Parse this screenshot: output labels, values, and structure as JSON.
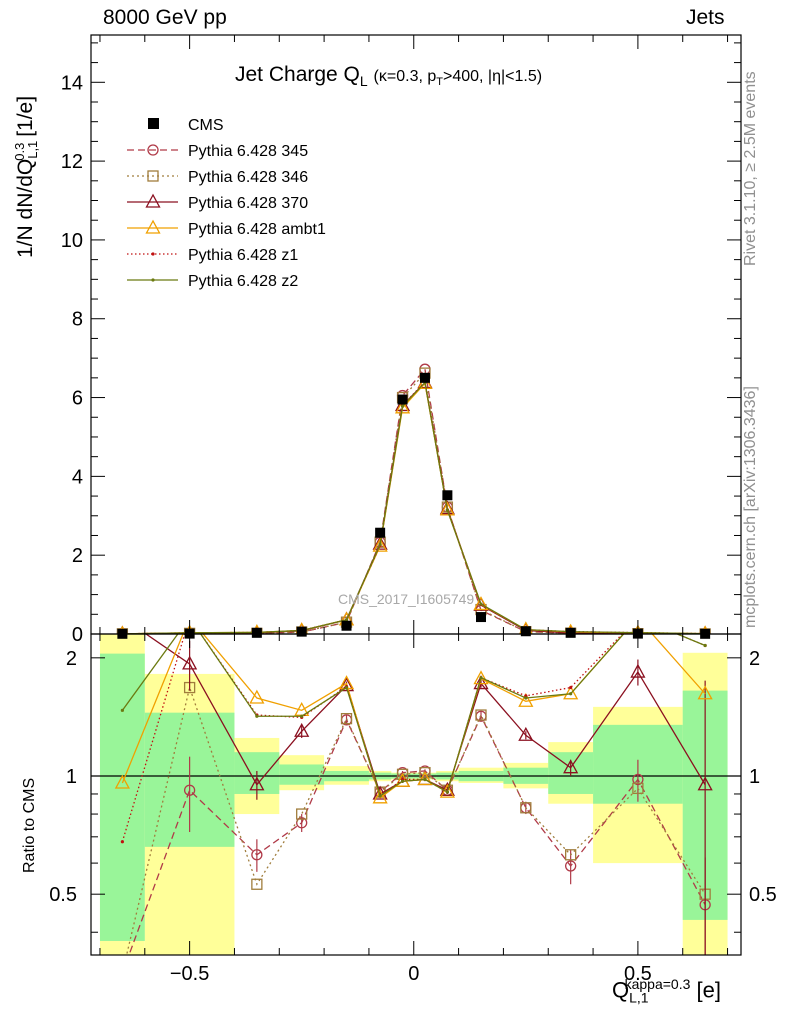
{
  "header": {
    "left": "8000 GeV pp",
    "right": "Jets"
  },
  "side": {
    "rivet": "Rivet 3.1.10, ≥ 2.5M events",
    "mcplots": "mcplots.cern.ch [arXiv:1306.3436]"
  },
  "watermark": "CMS_2017_I1605749",
  "chart_data": {
    "type": "line",
    "title": "Jet Charge Q_L (κ=0.3, p_T>400, |η|<1.5)",
    "title_main": "Jet Charge Q",
    "title_sub": "L",
    "title_detail": "(κ=0.3, p",
    "title_detail_sub": "T",
    "title_detail_end": ">400, |η|<1.5)",
    "xlabel": "Q_{L,1}^{kappa=0.3} [e]",
    "ylabel": "1/N dN/dQ_{L,1}^{0.3} [1/e]",
    "ratio_ylabel": "Ratio to CMS",
    "xlim": [
      -0.72,
      0.73
    ],
    "ylim": [
      0,
      15.2
    ],
    "ratio_ylim": [
      0.35,
      2.3
    ],
    "xticks": [
      -0.5,
      0,
      0.5
    ],
    "xticklabels": [
      "−0.5",
      "0",
      "0.5"
    ],
    "yticks": [
      0,
      2,
      4,
      6,
      8,
      10,
      12,
      14
    ],
    "ratio_yticks": [
      0.5,
      1,
      2
    ],
    "x": [
      -0.65,
      -0.5,
      -0.35,
      -0.25,
      -0.15,
      -0.075,
      -0.025,
      0.025,
      0.075,
      0.15,
      0.25,
      0.35,
      0.5,
      0.65
    ],
    "bin_edges": [
      -0.7,
      -0.6,
      -0.4,
      -0.3,
      -0.2,
      -0.1,
      -0.05,
      0,
      0.05,
      0.1,
      0.2,
      0.3,
      0.4,
      0.6,
      0.7
    ],
    "cms": [
      0.005,
      0.01,
      0.03,
      0.06,
      0.21,
      2.57,
      5.95,
      6.5,
      3.52,
      0.43,
      0.07,
      0.03,
      0.01,
      0.005
    ],
    "band_green": [
      [
        0.38,
        2.05
      ],
      [
        0.66,
        1.45
      ],
      [
        0.9,
        1.15
      ],
      [
        0.95,
        1.07
      ],
      [
        0.97,
        1.03
      ],
      [
        0.98,
        1.02
      ],
      [
        0.985,
        1.015
      ],
      [
        0.985,
        1.015
      ],
      [
        0.98,
        1.02
      ],
      [
        0.97,
        1.03
      ],
      [
        0.955,
        1.05
      ],
      [
        0.9,
        1.15
      ],
      [
        0.85,
        1.35
      ],
      [
        0.43,
        1.65
      ]
    ],
    "band_yellow": [
      [
        0.3,
        2.35
      ],
      [
        0.35,
        1.82
      ],
      [
        0.8,
        1.25
      ],
      [
        0.92,
        1.13
      ],
      [
        0.95,
        1.06
      ],
      [
        0.97,
        1.03
      ],
      [
        0.98,
        1.02
      ],
      [
        0.98,
        1.02
      ],
      [
        0.97,
        1.03
      ],
      [
        0.96,
        1.05
      ],
      [
        0.93,
        1.08
      ],
      [
        0.85,
        1.22
      ],
      [
        0.6,
        1.5
      ],
      [
        0.35,
        2.06
      ]
    ],
    "series": [
      {
        "name": "Pythia 6.428 345",
        "color": "#b03a48",
        "dash": "7,4",
        "marker": "circle",
        "values": [
          0.005,
          0.009,
          0.02,
          0.046,
          0.3,
          2.33,
          6.05,
          6.72,
          3.22,
          0.6,
          0.06,
          0.02,
          0.01,
          0.002
        ],
        "ratio": [
          0.1,
          0.92,
          0.63,
          0.76,
          1.39,
          0.91,
          1.02,
          1.03,
          0.92,
          1.42,
          0.83,
          0.59,
          0.98,
          0.47
        ]
      },
      {
        "name": "Pythia 6.428 346",
        "color": "#a07d3c",
        "dash": "2,3",
        "marker": "square",
        "values": [
          0.005,
          0.016,
          0.016,
          0.05,
          0.3,
          2.33,
          6.0,
          6.62,
          3.22,
          0.62,
          0.06,
          0.02,
          0.009,
          0.002
        ],
        "ratio": [
          0.15,
          1.68,
          0.53,
          0.8,
          1.4,
          0.91,
          1.01,
          1.02,
          0.92,
          1.43,
          0.83,
          0.63,
          0.93,
          0.5
        ]
      },
      {
        "name": "Pythia 6.428 370",
        "color": "#8b1020",
        "dash": "",
        "marker": "triangle",
        "values": [
          0.005,
          0.02,
          0.028,
          0.08,
          0.36,
          2.28,
          5.8,
          6.38,
          3.18,
          0.73,
          0.09,
          0.03,
          0.018,
          0.005
        ],
        "ratio": [
          3.5,
          1.93,
          0.95,
          1.3,
          1.7,
          0.9,
          0.97,
          0.98,
          0.92,
          1.72,
          1.27,
          1.05,
          1.84,
          0.95
        ]
      },
      {
        "name": "Pythia 6.428 ambt1",
        "color": "#f0a000",
        "dash": "",
        "marker": "triangle",
        "values": [
          0.005,
          0.03,
          0.04,
          0.09,
          0.36,
          2.23,
          5.74,
          6.36,
          3.15,
          0.75,
          0.11,
          0.05,
          0.03,
          0.008
        ],
        "ratio": [
          0.96,
          3.5,
          1.58,
          1.47,
          1.72,
          0.88,
          0.97,
          0.98,
          0.91,
          1.77,
          1.55,
          1.62,
          3.5,
          1.62
        ]
      },
      {
        "name": "Pythia 6.428 z1",
        "color": "#c01010",
        "dash": "1.5,2.5",
        "marker": "dot",
        "values": [
          0.005,
          0.03,
          0.04,
          0.09,
          0.36,
          2.25,
          5.8,
          6.4,
          3.15,
          0.75,
          0.11,
          0.06,
          0.035,
          0.01
        ],
        "ratio": [
          0.68,
          3.5,
          1.43,
          1.41,
          1.69,
          0.89,
          0.98,
          0.98,
          0.91,
          1.78,
          1.6,
          1.68,
          3.5,
          2.15
        ]
      },
      {
        "name": "Pythia 6.428 z2",
        "color": "#6b7a10",
        "dash": "",
        "marker": "dot",
        "values": [
          0.005,
          0.03,
          0.04,
          0.09,
          0.36,
          2.27,
          5.78,
          6.38,
          3.14,
          0.76,
          0.11,
          0.06,
          0.035,
          0.01
        ],
        "ratio": [
          1.47,
          3.5,
          1.42,
          1.42,
          1.68,
          0.89,
          0.97,
          0.98,
          0.91,
          1.78,
          1.58,
          1.62,
          3.5,
          2.15
        ]
      }
    ],
    "ratio_errors": {
      "Pythia 6.428 345": [
        0,
        0.2,
        0.06,
        0.04,
        0.04,
        0.02,
        0.01,
        0.01,
        0.02,
        0.04,
        0.03,
        0.06,
        0.12,
        0.15
      ],
      "Pythia 6.428 370": [
        0,
        0.28,
        0.08,
        0.05,
        0.04,
        0.02,
        0.01,
        0.01,
        0.02,
        0.04,
        0.03,
        0.05,
        0.14,
        0.8
      ]
    }
  }
}
